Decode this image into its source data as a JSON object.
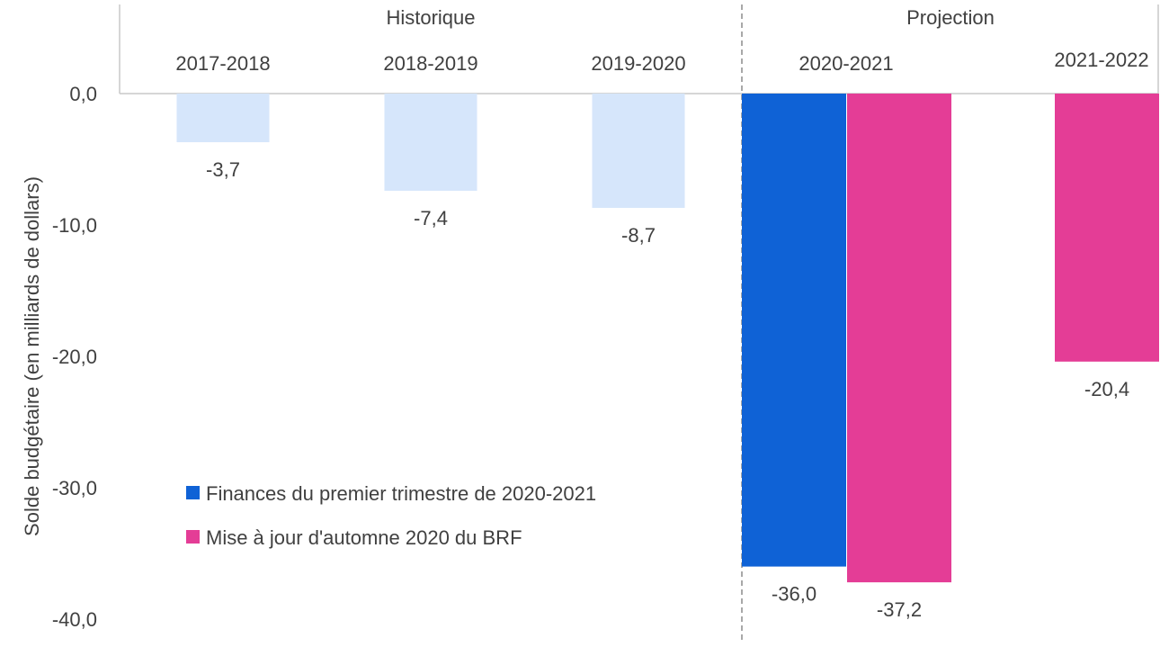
{
  "chart_data": {
    "type": "bar",
    "ylabel": "Solde budgétaire (en milliards de dollars)",
    "ylim": [
      -40,
      0
    ],
    "yticks": [
      0,
      -10,
      -20,
      -30,
      -40
    ],
    "ytick_labels": [
      "0,0",
      "-10,0",
      "-20,0",
      "-30,0",
      "-40,0"
    ],
    "grid": false,
    "sections": [
      {
        "label": "Historique"
      },
      {
        "label": "Projection"
      }
    ],
    "categories": [
      "2017-2018",
      "2018-2019",
      "2019-2020",
      "2020-2021",
      "2021-2022"
    ],
    "historical": {
      "values": [
        -3.7,
        -7.4,
        -8.7
      ],
      "labels": [
        "-3,7",
        "-7,4",
        "-8,7"
      ],
      "color": "#d6e6fb"
    },
    "series": [
      {
        "name": "Finances du premier trimestre de 2020-2021",
        "color": "#0f62d6",
        "values": [
          null,
          null,
          null,
          -36.0,
          null
        ],
        "labels": [
          "",
          "",
          "",
          "-36,0",
          ""
        ]
      },
      {
        "name": "Mise à jour d'automne 2020 du BRF",
        "color": "#e43d96",
        "values": [
          null,
          null,
          null,
          -37.2,
          -20.4
        ],
        "labels": [
          "",
          "",
          "",
          "-37,2",
          "-20,4"
        ]
      }
    ],
    "legend_position": "bottom-left"
  }
}
